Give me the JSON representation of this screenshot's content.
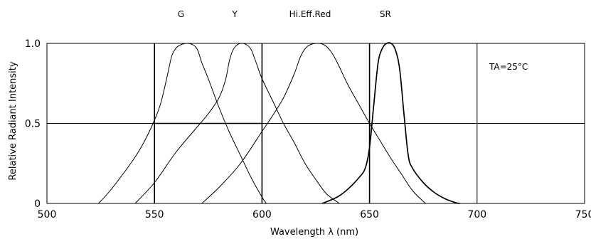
{
  "chart_data": {
    "type": "line",
    "xlabel": "Wavelength  λ (nm)",
    "ylabel": "Relative  Radiant  Intensity",
    "xlim": [
      500,
      750
    ],
    "ylim": [
      0,
      1.0
    ],
    "x_ticks": [
      500,
      550,
      600,
      650,
      700,
      750
    ],
    "x_tick_labels": [
      "500",
      "550",
      "600",
      "650",
      "700",
      "750"
    ],
    "y_ticks": [
      0,
      0.5,
      1.0
    ],
    "y_tick_labels": [
      "0",
      "0.5",
      "1.0"
    ],
    "grid": true,
    "annotation": "TA=25°C",
    "series": [
      {
        "name": "G",
        "peak_nm": 565,
        "x": [
          524,
          530,
          540,
          545,
          550,
          553,
          556,
          558,
          560,
          562,
          565,
          568,
          570,
          572,
          575,
          580,
          585,
          590,
          595,
          600,
          602
        ],
        "y": [
          0,
          0.09,
          0.27,
          0.38,
          0.52,
          0.63,
          0.8,
          0.92,
          0.97,
          0.99,
          1.0,
          0.99,
          0.96,
          0.88,
          0.78,
          0.6,
          0.44,
          0.3,
          0.16,
          0.04,
          0
        ]
      },
      {
        "name": "Y",
        "peak_nm": 590,
        "x": [
          541,
          550,
          560,
          570,
          575,
          580,
          583,
          585,
          587,
          590,
          593,
          595,
          597,
          600,
          605,
          610,
          615,
          620,
          625,
          630,
          636
        ],
        "y": [
          0,
          0.13,
          0.32,
          0.48,
          0.56,
          0.66,
          0.77,
          0.9,
          0.97,
          1.0,
          0.99,
          0.96,
          0.89,
          0.78,
          0.64,
          0.5,
          0.38,
          0.25,
          0.15,
          0.06,
          0
        ]
      },
      {
        "name": "Hi.Eff.Red",
        "peak_nm": 625,
        "x": [
          572,
          580,
          590,
          600,
          605,
          610,
          615,
          618,
          621,
          625,
          629,
          632,
          635,
          640,
          645,
          650,
          655,
          660,
          665,
          670,
          676
        ],
        "y": [
          0,
          0.1,
          0.25,
          0.45,
          0.55,
          0.66,
          0.81,
          0.92,
          0.98,
          1.0,
          0.99,
          0.95,
          0.88,
          0.74,
          0.62,
          0.5,
          0.39,
          0.28,
          0.18,
          0.08,
          0
        ]
      },
      {
        "name": "SR",
        "peak_nm": 660,
        "x": [
          628,
          635,
          640,
          645,
          648,
          650,
          652,
          654,
          656,
          658,
          660,
          662,
          664,
          666,
          668,
          670,
          675,
          680,
          685,
          690,
          692
        ],
        "y": [
          0,
          0.04,
          0.09,
          0.16,
          0.22,
          0.35,
          0.62,
          0.88,
          0.97,
          1.0,
          1.0,
          0.96,
          0.84,
          0.56,
          0.3,
          0.22,
          0.13,
          0.07,
          0.03,
          0.005,
          0
        ]
      }
    ]
  }
}
